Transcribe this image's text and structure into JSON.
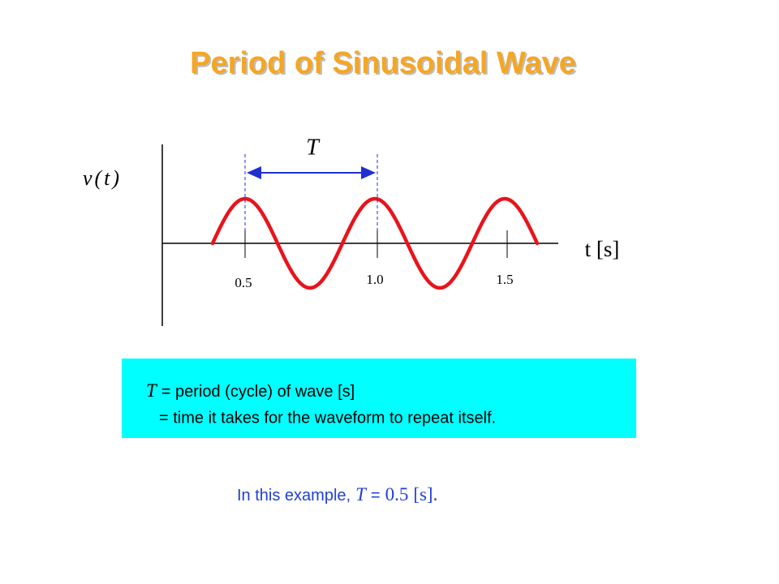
{
  "title": "Period of Sinusoidal Wave",
  "diagram": {
    "period_label": "T",
    "y_label": "v(t)",
    "x_label": "t [s]",
    "tick_labels": [
      "0.5",
      "1.0",
      "1.5"
    ]
  },
  "definition": {
    "symbol": "T",
    "line1": "= period (cycle) of wave [s]",
    "line2": "=  time it takes for the waveform to repeat itself."
  },
  "example": {
    "prefix": "In this example,",
    "symbol": "T",
    "equals": "=",
    "value": "0.5",
    "unit": "[s]."
  }
}
